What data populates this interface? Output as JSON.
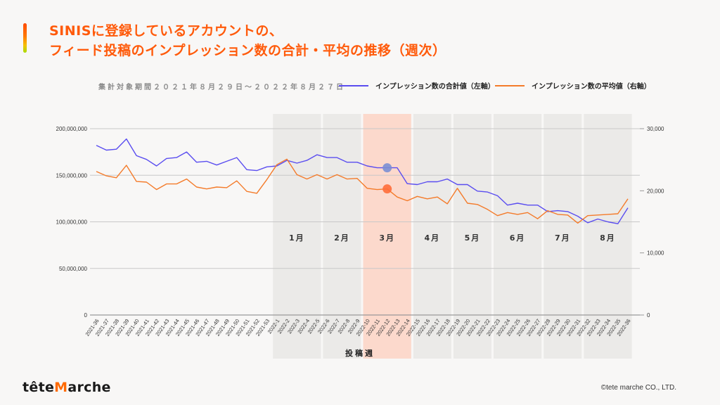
{
  "title": {
    "line1": "SINISに登録しているアカウントの、",
    "line2": "フィード投稿のインプレッション数の合計・平均の推移（週次）"
  },
  "period": "集計対象期間２０２１年８月２９日～２０２２年８月２７日",
  "footer": {
    "logo_prefix": "tête",
    "logo_m": "M",
    "logo_suffix": "arche",
    "copyright": "©tete marche CO., LTD."
  },
  "colors": {
    "accent": "#ff5a0a",
    "sum_line": "#5a4df0",
    "avg_line": "#f47b2a",
    "month_band": "#ebeae8",
    "highlight_band": "#fcd9cc"
  },
  "chart_data": {
    "type": "line",
    "title": "SINISに登録しているアカウントの、フィード投稿のインプレッション数の合計・平均の推移（週次）",
    "xlabel": "投稿週",
    "ylabel_left": "",
    "ylabel_right": "",
    "ylim_left": [
      0,
      200000000
    ],
    "ylim_right": [
      0,
      30000
    ],
    "yticks_left": [
      "0",
      "50,000,000",
      "100,000,000",
      "150,000,000",
      "200,000,000"
    ],
    "yticks_right": [
      "0",
      "10,000",
      "20,000",
      "30,000"
    ],
    "grid": true,
    "legend_position": "top-right",
    "categories": [
      "2021-36",
      "2021-37",
      "2021-38",
      "2021-39",
      "2021-40",
      "2021-41",
      "2021-42",
      "2021-43",
      "2021-44",
      "2021-45",
      "2021-46",
      "2021-47",
      "2021-48",
      "2021-49",
      "2021-50",
      "2021-51",
      "2021-52",
      "2021-53",
      "2022-1",
      "2022-2",
      "2022-3",
      "2022-4",
      "2022-5",
      "2022-6",
      "2022-7",
      "2022-8",
      "2022-9",
      "2022-10",
      "2022-11",
      "2022-12",
      "2022-13",
      "2022-14",
      "2022-15",
      "2022-16",
      "2022-17",
      "2022-18",
      "2022-19",
      "2022-20",
      "2022-21",
      "2022-22",
      "2022-23",
      "2022-24",
      "2022-25",
      "2022-26",
      "2022-27",
      "2022-28",
      "2022-29",
      "2022-30",
      "2022-31",
      "2022-32",
      "2022-33",
      "2022-34",
      "2022-35",
      "2022-36"
    ],
    "series": [
      {
        "name": "インプレッション数の合計値（左軸）",
        "axis": "left",
        "values": [
          182000000,
          177000000,
          178000000,
          189000000,
          171000000,
          167000000,
          160000000,
          168000000,
          169000000,
          175000000,
          164000000,
          165000000,
          161000000,
          165000000,
          169000000,
          156000000,
          155000000,
          159000000,
          160000000,
          166000000,
          163000000,
          166000000,
          172000000,
          169000000,
          169000000,
          164000000,
          164000000,
          160000000,
          158000000,
          158000000,
          158000000,
          141000000,
          140000000,
          143000000,
          143000000,
          146000000,
          140000000,
          140000000,
          133000000,
          132000000,
          128000000,
          118000000,
          120000000,
          118000000,
          118000000,
          111000000,
          112000000,
          111000000,
          106000000,
          99000000,
          103000000,
          100000000,
          98000000,
          115000000
        ]
      },
      {
        "name": "インプレッション数の平均値（右軸）",
        "axis": "right",
        "values": [
          23100,
          22400,
          22100,
          24100,
          21500,
          21400,
          20200,
          21100,
          21100,
          21900,
          20600,
          20300,
          20600,
          20500,
          21600,
          19900,
          19600,
          21800,
          24200,
          25100,
          22600,
          21900,
          22600,
          21900,
          22600,
          21900,
          22000,
          20400,
          20200,
          20300,
          19000,
          18400,
          19100,
          18700,
          19000,
          17900,
          20400,
          18000,
          17800,
          17000,
          16000,
          16500,
          16200,
          16500,
          15500,
          16800,
          16200,
          16100,
          14800,
          16000,
          16100,
          16200,
          16300,
          18700
        ]
      }
    ],
    "month_bands": [
      {
        "label": "1月",
        "start": "2022-1",
        "end": "2022-5"
      },
      {
        "label": "2月",
        "start": "2022-6",
        "end": "2022-9"
      },
      {
        "label": "3月",
        "start": "2022-10",
        "end": "2022-14",
        "highlight": true
      },
      {
        "label": "4月",
        "start": "2022-15",
        "end": "2022-18"
      },
      {
        "label": "5月",
        "start": "2022-19",
        "end": "2022-22"
      },
      {
        "label": "6月",
        "start": "2022-23",
        "end": "2022-27"
      },
      {
        "label": "7月",
        "start": "2022-28",
        "end": "2022-31"
      },
      {
        "label": "8月",
        "start": "2022-32",
        "end": "2022-36"
      }
    ],
    "annotations": [
      {
        "category": "2022-12",
        "series": "インプレッション数の合計値（左軸）",
        "marker": "circle"
      },
      {
        "category": "2022-12",
        "series": "インプレッション数の平均値（右軸）",
        "marker": "circle"
      }
    ]
  }
}
